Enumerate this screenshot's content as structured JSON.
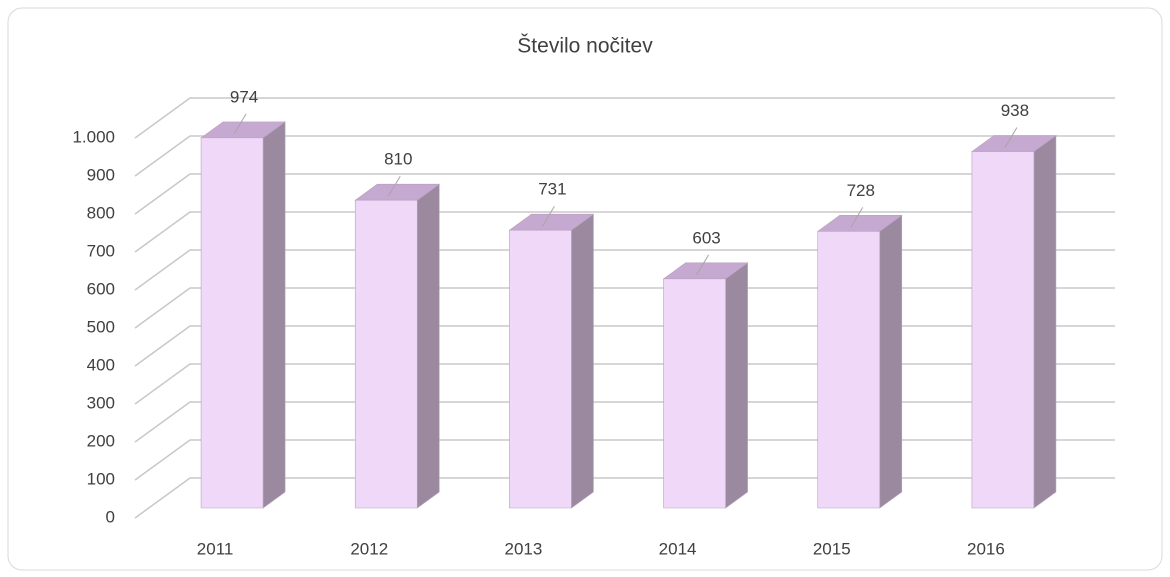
{
  "chart_data": {
    "type": "bar3d",
    "title": "Število nočitev",
    "categories": [
      "2011",
      "2012",
      "2013",
      "2014",
      "2015",
      "2016"
    ],
    "values": [
      974,
      810,
      731,
      603,
      728,
      938
    ],
    "color": "#f0d8f8",
    "ylim": [
      0,
      1000
    ],
    "yticks": [
      0,
      100,
      200,
      300,
      400,
      500,
      600,
      700,
      800,
      900,
      {
        "value": 1000,
        "label": "1.000"
      }
    ],
    "grid": true
  }
}
